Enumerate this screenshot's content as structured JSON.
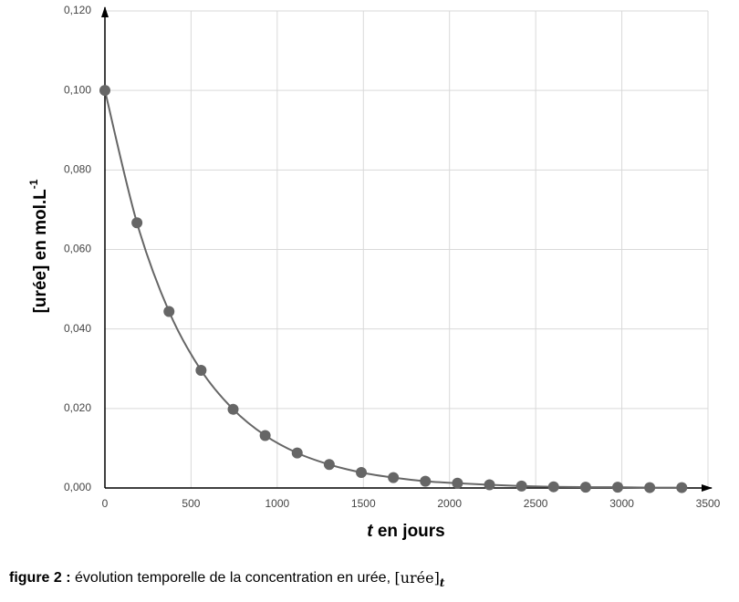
{
  "chart_data": {
    "type": "scatter",
    "ylabel": "[urée] en mol.L",
    "ylabel_sup": "-1",
    "xlabel_var": "t",
    "xlabel": "en jours",
    "caption": {
      "label": "figure 2 :",
      "text": "évolution temporelle de la concentration en urée,",
      "math": "[urée]",
      "math_sub": "t"
    },
    "x": [
      0,
      186,
      372,
      558,
      744,
      930,
      1116,
      1302,
      1488,
      1674,
      1860,
      2046,
      2232,
      2418,
      2604,
      2790,
      2976,
      3162,
      3348
    ],
    "series": [
      {
        "color": "#666666",
        "values": [
          0.1,
          0.0667,
          0.0444,
          0.0296,
          0.0198,
          0.0132,
          0.0088,
          0.0059,
          0.0039,
          0.0026,
          0.0017,
          0.0012,
          0.0008,
          0.0005,
          0.0003,
          0.0002,
          0.0002,
          0.0001,
          0.0001
        ]
      }
    ],
    "xlim": [
      0,
      3500
    ],
    "xticks": [
      0,
      500,
      1000,
      1500,
      2000,
      2500,
      3000,
      3500
    ],
    "ylim": [
      0,
      0.12
    ],
    "yticks": [
      {
        "value": 0,
        "label": "0,000"
      },
      {
        "value": 0.02,
        "label": "0,020"
      },
      {
        "value": 0.04,
        "label": "0,040"
      },
      {
        "value": 0.06,
        "label": "0,060"
      },
      {
        "value": 0.08,
        "label": "0,080"
      },
      {
        "value": 0.1,
        "label": "0,100"
      },
      {
        "value": 0.12,
        "label": "0,120"
      }
    ],
    "grid": true
  }
}
